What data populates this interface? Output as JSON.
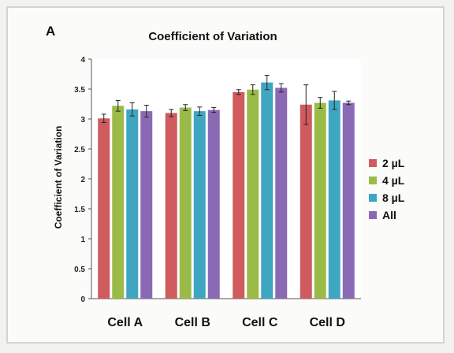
{
  "panel_label": "A",
  "chart_data": {
    "type": "bar",
    "title": "Coefficient of Variation",
    "xlabel": "",
    "ylabel": "Coefficient of Variation",
    "ylim": [
      0,
      4
    ],
    "yticks": [
      "0",
      "0.5",
      "1",
      "1.5",
      "2",
      "2.5",
      "3",
      "3.5",
      "4"
    ],
    "categories": [
      "Cell A",
      "Cell B",
      "Cell C",
      "Cell D"
    ],
    "legend_position": "right",
    "series": [
      {
        "name": "2 µL",
        "color": "#cf5b5e",
        "values": [
          3.01,
          3.1,
          3.45,
          3.24
        ],
        "errors": [
          0.07,
          0.06,
          0.04,
          0.33
        ]
      },
      {
        "name": "4 µL",
        "color": "#9bbb48",
        "values": [
          3.22,
          3.19,
          3.49,
          3.27
        ],
        "errors": [
          0.09,
          0.05,
          0.08,
          0.09
        ]
      },
      {
        "name": "8 µL",
        "color": "#3fa6c2",
        "values": [
          3.16,
          3.13,
          3.61,
          3.31
        ],
        "errors": [
          0.11,
          0.07,
          0.12,
          0.15
        ]
      },
      {
        "name": "All",
        "color": "#8a6ab4",
        "values": [
          3.13,
          3.15,
          3.52,
          3.27
        ],
        "errors": [
          0.1,
          0.04,
          0.07,
          0.03
        ]
      }
    ]
  }
}
